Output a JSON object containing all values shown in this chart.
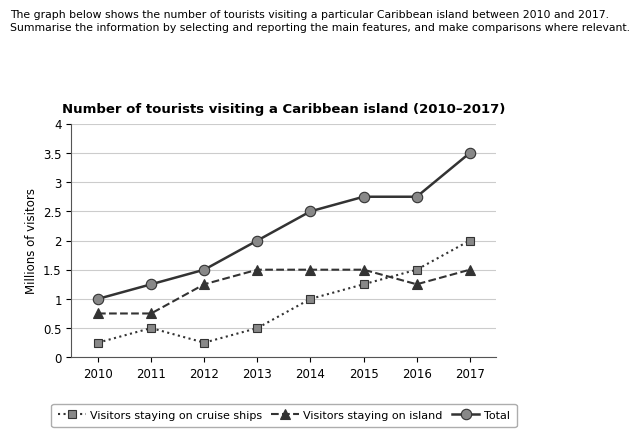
{
  "title": "Number of tourists visiting a Caribbean island (2010–2017)",
  "header_line1": "The graph below shows the number of tourists visiting a particular Caribbean island between 2010 and 2017.",
  "header_line2": "Summarise the information by selecting and reporting the main features, and make comparisons where relevant.",
  "ylabel": "Millions of visitors",
  "years": [
    2010,
    2011,
    2012,
    2013,
    2014,
    2015,
    2016,
    2017
  ],
  "cruise_ships": [
    0.25,
    0.5,
    0.25,
    0.5,
    1.0,
    1.25,
    1.5,
    2.0
  ],
  "island": [
    0.75,
    0.75,
    1.25,
    1.5,
    1.5,
    1.5,
    1.25,
    1.5
  ],
  "total": [
    1.0,
    1.25,
    1.5,
    2.0,
    2.5,
    2.75,
    2.75,
    3.5
  ],
  "ylim": [
    0,
    4
  ],
  "yticks": [
    0,
    0.5,
    1.0,
    1.5,
    2.0,
    2.5,
    3.0,
    3.5,
    4.0
  ],
  "legend_labels": [
    "Visitors staying on cruise ships",
    "Visitors staying on island",
    "Total"
  ],
  "grid_color": "#cccccc",
  "dark": "#333333",
  "gray": "#888888"
}
